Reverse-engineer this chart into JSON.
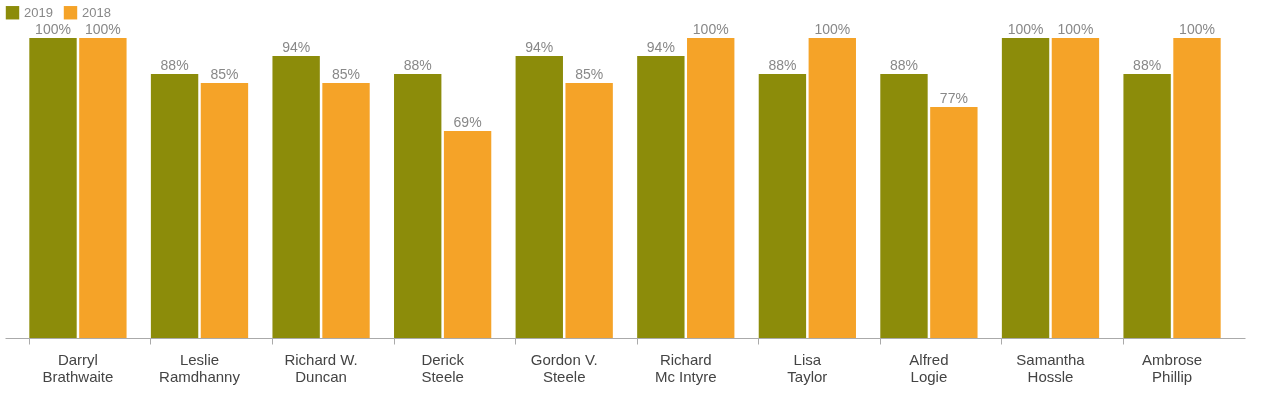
{
  "chart_data": {
    "type": "bar",
    "categories": [
      "Darryl\nBrathwaite",
      "Leslie\nRamdhanny",
      "Richard W.\nDuncan",
      "Derick\nSteele",
      "Gordon V.\nSteele",
      "Richard\nMc Intyre",
      "Lisa\nTaylor",
      "Alfred\nLogie",
      "Samantha\nHossle",
      "Ambrose\nPhillip"
    ],
    "series": [
      {
        "name": "2019",
        "color": "#8c8c0a",
        "values": [
          100,
          88,
          94,
          88,
          94,
          94,
          88,
          88,
          100,
          88
        ],
        "value_labels": [
          "100%",
          "88%",
          "94%",
          "88%",
          "94%",
          "94%",
          "88%",
          "88%",
          "100%",
          "88%"
        ]
      },
      {
        "name": "2018",
        "color": "#f5a328",
        "values": [
          100,
          85,
          85,
          69,
          85,
          100,
          100,
          77,
          100,
          100
        ],
        "value_labels": [
          "100%",
          "85%",
          "85%",
          "69%",
          "85%",
          "100%",
          "100%",
          "77%",
          "100%",
          "100%"
        ]
      }
    ],
    "legend": "top",
    "grid": false
  }
}
